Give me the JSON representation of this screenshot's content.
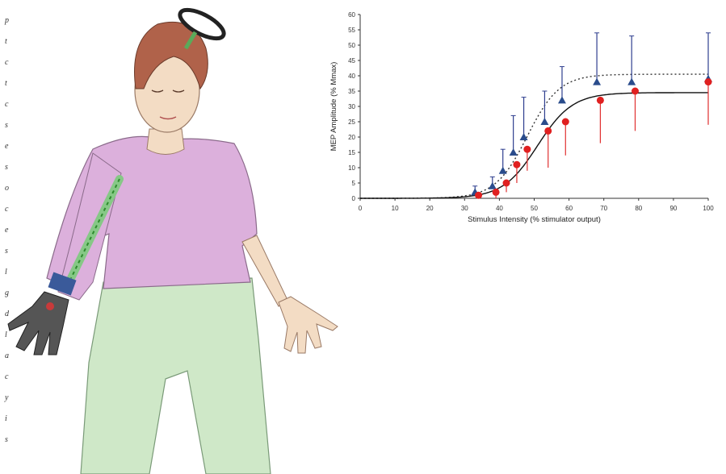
{
  "illustration": {
    "description_name": "seated-person-arm-illustration"
  },
  "edge_glyphs": [
    "p",
    "t",
    "c",
    "t",
    "c",
    "s",
    "e",
    "s",
    "o",
    "c",
    "e",
    "s",
    "l",
    "g",
    "d",
    "l",
    "a",
    "c",
    "y",
    "i",
    "s"
  ],
  "colors": {
    "series_triangle": "#2a4c8c",
    "series_circle": "#e02020",
    "errbar_triangle": "#2f3f8f",
    "errbar_circle": "#e03030",
    "skin": "#f3dcc4",
    "shirt": "#dcb0dc",
    "pants": "#cfe8c8",
    "hair": "#b0624a"
  },
  "chart_data": {
    "type": "scatter",
    "title": "",
    "xlabel": "Stimulus Intensity (% stimulator output)",
    "ylabel": "MEP Amplitude (% Mmax)",
    "xlim": [
      0,
      100
    ],
    "ylim": [
      0,
      60
    ],
    "xticks": [
      0,
      10,
      20,
      30,
      40,
      50,
      60,
      70,
      80,
      90,
      100
    ],
    "yticks": [
      0,
      5,
      10,
      15,
      20,
      25,
      30,
      35,
      40,
      45,
      50,
      55,
      60
    ],
    "grid": false,
    "legend": "none",
    "series": [
      {
        "marker": "triangle",
        "x": [
          33,
          38,
          41,
          44,
          47,
          53,
          58,
          68,
          78,
          100
        ],
        "y": [
          2,
          4,
          9,
          15,
          20,
          25,
          32,
          38,
          38,
          39
        ],
        "err_upper": [
          2,
          3,
          7,
          12,
          13,
          10,
          11,
          16,
          15,
          15
        ],
        "curve": "dotted-sigmoid",
        "curve_plateau": 40.5
      },
      {
        "marker": "circle",
        "x": [
          34,
          39,
          42,
          45,
          48,
          54,
          59,
          69,
          79,
          100
        ],
        "y": [
          1,
          2,
          5,
          11,
          16,
          22,
          25,
          32,
          35,
          38
        ],
        "err_lower": [
          1,
          2,
          3,
          6,
          7,
          12,
          11,
          14,
          13,
          14
        ],
        "curve": "solid-sigmoid",
        "curve_plateau": 34.5
      }
    ]
  }
}
